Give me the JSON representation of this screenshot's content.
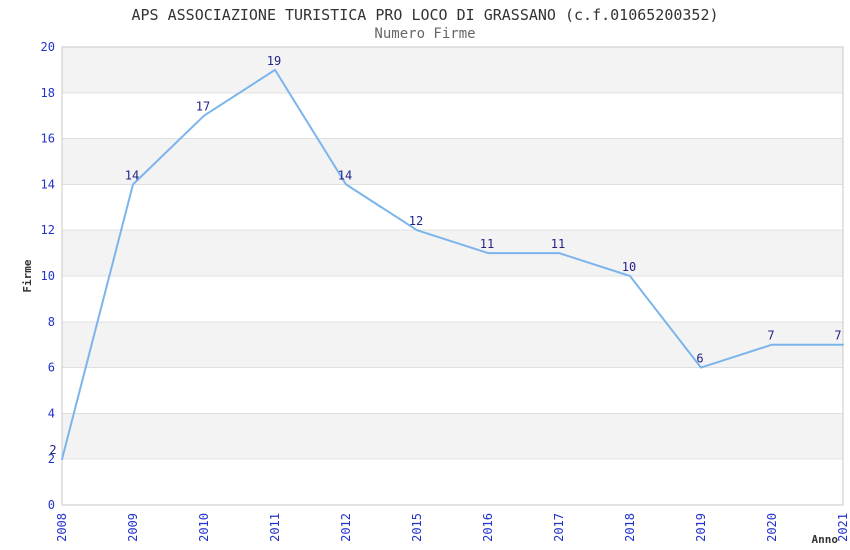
{
  "chart_data": {
    "type": "line",
    "title": "APS ASSOCIAZIONE TURISTICA PRO LOCO DI GRASSANO (c.f.01065200352)",
    "subtitle": "Numero Firme",
    "xlabel": "Anno",
    "ylabel": "Firme",
    "categories": [
      "2008",
      "2009",
      "2010",
      "2011",
      "2012",
      "2015",
      "2016",
      "2017",
      "2018",
      "2019",
      "2020",
      "2021"
    ],
    "series": [
      {
        "name": "Numero Firme",
        "values": [
          2,
          14,
          17,
          19,
          14,
          12,
          11,
          11,
          10,
          6,
          7,
          7
        ]
      }
    ],
    "data_labels": [
      "2",
      "14",
      "17",
      "19",
      "14",
      "12",
      "11",
      "11",
      "10",
      "6",
      "7",
      "7"
    ],
    "ylim": [
      0,
      20
    ],
    "ytick_step": 2,
    "yticks": [
      0,
      2,
      4,
      6,
      8,
      10,
      12,
      14,
      16,
      18,
      20
    ],
    "legend_position": "none",
    "grid": "horizontal",
    "plot_bands": "alternating-gray",
    "x_tick_rotation": -90,
    "colors": {
      "line": "#7cb5ec",
      "tick_label": "#2233cc",
      "data_label": "#232388",
      "band": "#f3f3f3",
      "gridline": "#e0e0e0",
      "plot_border": "#c8c8c8",
      "title": "#333333",
      "subtitle": "#666666",
      "axis_title": "#333333",
      "background": "#ffffff"
    }
  }
}
